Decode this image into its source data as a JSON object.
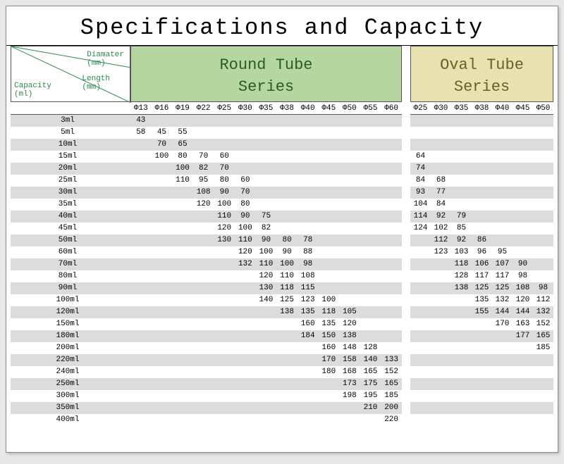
{
  "title": "Specifications and Capacity",
  "header": {
    "diameter": "Diamater\n(mm)",
    "length": "Length\n(mm)",
    "capacity": "Capacity\n(ml)",
    "diameter_line1": "Diamater",
    "diameter_line2": "(mm)",
    "length_line1": "Length",
    "length_line2": "(mm)",
    "capacity_line1": "Capacity",
    "capacity_line2": "(ml)"
  },
  "round": {
    "title_line1": "Round Tube",
    "title_line2": "Series",
    "diameters": [
      "Φ13",
      "Φ16",
      "Φ19",
      "Φ22",
      "Φ25",
      "Φ30",
      "Φ35",
      "Φ38",
      "Φ40",
      "Φ45",
      "Φ50",
      "Φ55",
      "Φ60"
    ],
    "head_bg": "#b5d6a0",
    "head_color": "#2a5a2a"
  },
  "oval": {
    "title_line1": "Oval Tube",
    "title_line2": "Series",
    "diameters": [
      "Φ25",
      "Φ30",
      "Φ35",
      "Φ38",
      "Φ40",
      "Φ45",
      "Φ50"
    ],
    "head_bg": "#e8e2b0",
    "head_color": "#6a6020"
  },
  "capacities": [
    "3ml",
    "5ml",
    "10ml",
    "15ml",
    "20ml",
    "25ml",
    "30ml",
    "35ml",
    "40ml",
    "45ml",
    "50ml",
    "60ml",
    "70ml",
    "80ml",
    "90ml",
    "100ml",
    "120ml",
    "150ml",
    "180ml",
    "200ml",
    "220ml",
    "240ml",
    "250ml",
    "300ml",
    "350ml",
    "400ml"
  ],
  "round_data": [
    [
      "43",
      "",
      "",
      "",
      "",
      "",
      "",
      "",
      "",
      "",
      "",
      "",
      ""
    ],
    [
      "58",
      "45",
      "55",
      "",
      "",
      "",
      "",
      "",
      "",
      "",
      "",
      "",
      ""
    ],
    [
      "",
      "70",
      "65",
      "",
      "",
      "",
      "",
      "",
      "",
      "",
      "",
      "",
      ""
    ],
    [
      "",
      "100",
      "80",
      "70",
      "60",
      "",
      "",
      "",
      "",
      "",
      "",
      "",
      ""
    ],
    [
      "",
      "",
      "100",
      "82",
      "70",
      "",
      "",
      "",
      "",
      "",
      "",
      "",
      ""
    ],
    [
      "",
      "",
      "110",
      "95",
      "80",
      "60",
      "",
      "",
      "",
      "",
      "",
      "",
      ""
    ],
    [
      "",
      "",
      "",
      "108",
      "90",
      "70",
      "",
      "",
      "",
      "",
      "",
      "",
      ""
    ],
    [
      "",
      "",
      "",
      "120",
      "100",
      "80",
      "",
      "",
      "",
      "",
      "",
      "",
      ""
    ],
    [
      "",
      "",
      "",
      "",
      "110",
      "90",
      "75",
      "",
      "",
      "",
      "",
      "",
      ""
    ],
    [
      "",
      "",
      "",
      "",
      "120",
      "100",
      "82",
      "",
      "",
      "",
      "",
      "",
      ""
    ],
    [
      "",
      "",
      "",
      "",
      "130",
      "110",
      "90",
      "80",
      "78",
      "",
      "",
      "",
      ""
    ],
    [
      "",
      "",
      "",
      "",
      "",
      "120",
      "100",
      "90",
      "88",
      "",
      "",
      "",
      ""
    ],
    [
      "",
      "",
      "",
      "",
      "",
      "132",
      "110",
      "100",
      "98",
      "",
      "",
      "",
      ""
    ],
    [
      "",
      "",
      "",
      "",
      "",
      "",
      "120",
      "110",
      "108",
      "",
      "",
      "",
      ""
    ],
    [
      "",
      "",
      "",
      "",
      "",
      "",
      "130",
      "118",
      "115",
      "",
      "",
      "",
      ""
    ],
    [
      "",
      "",
      "",
      "",
      "",
      "",
      "140",
      "125",
      "123",
      "100",
      "",
      "",
      ""
    ],
    [
      "",
      "",
      "",
      "",
      "",
      "",
      "",
      "138",
      "135",
      "118",
      "105",
      "",
      ""
    ],
    [
      "",
      "",
      "",
      "",
      "",
      "",
      "",
      "",
      "160",
      "135",
      "120",
      "",
      ""
    ],
    [
      "",
      "",
      "",
      "",
      "",
      "",
      "",
      "",
      "184",
      "150",
      "138",
      "",
      ""
    ],
    [
      "",
      "",
      "",
      "",
      "",
      "",
      "",
      "",
      "",
      "160",
      "148",
      "128",
      ""
    ],
    [
      "",
      "",
      "",
      "",
      "",
      "",
      "",
      "",
      "",
      "170",
      "158",
      "140",
      "133"
    ],
    [
      "",
      "",
      "",
      "",
      "",
      "",
      "",
      "",
      "",
      "180",
      "168",
      "165",
      "152"
    ],
    [
      "",
      "",
      "",
      "",
      "",
      "",
      "",
      "",
      "",
      "",
      "173",
      "175",
      "165"
    ],
    [
      "",
      "",
      "",
      "",
      "",
      "",
      "",
      "",
      "",
      "",
      "198",
      "195",
      "185"
    ],
    [
      "",
      "",
      "",
      "",
      "",
      "",
      "",
      "",
      "",
      "",
      "",
      "210",
      "200"
    ],
    [
      "",
      "",
      "",
      "",
      "",
      "",
      "",
      "",
      "",
      "",
      "",
      "",
      "220"
    ]
  ],
  "oval_data": [
    [
      "",
      "",
      "",
      "",
      "",
      "",
      ""
    ],
    [
      "",
      "",
      "",
      "",
      "",
      "",
      ""
    ],
    [
      "",
      "",
      "",
      "",
      "",
      "",
      ""
    ],
    [
      "64",
      "",
      "",
      "",
      "",
      "",
      ""
    ],
    [
      "74",
      "",
      "",
      "",
      "",
      "",
      ""
    ],
    [
      "84",
      "68",
      "",
      "",
      "",
      "",
      ""
    ],
    [
      "93",
      "77",
      "",
      "",
      "",
      "",
      ""
    ],
    [
      "104",
      "84",
      "",
      "",
      "",
      "",
      ""
    ],
    [
      "114",
      "92",
      "79",
      "",
      "",
      "",
      ""
    ],
    [
      "124",
      "102",
      "85",
      "",
      "",
      "",
      ""
    ],
    [
      "",
      "112",
      "92",
      "86",
      "",
      "",
      ""
    ],
    [
      "",
      "123",
      "103",
      "96",
      "95",
      "",
      ""
    ],
    [
      "",
      "",
      "118",
      "106",
      "107",
      "90",
      ""
    ],
    [
      "",
      "",
      "128",
      "117",
      "117",
      "98",
      ""
    ],
    [
      "",
      "",
      "138",
      "125",
      "125",
      "108",
      "98"
    ],
    [
      "",
      "",
      "",
      "135",
      "132",
      "120",
      "112"
    ],
    [
      "",
      "",
      "",
      "155",
      "144",
      "144",
      "132"
    ],
    [
      "",
      "",
      "",
      "",
      "170",
      "163",
      "152"
    ],
    [
      "",
      "",
      "",
      "",
      "",
      "177",
      "165"
    ],
    [
      "",
      "",
      "",
      "",
      "",
      "",
      "185"
    ],
    [
      "",
      "",
      "",
      "",
      "",
      "",
      ""
    ],
    [
      "",
      "",
      "",
      "",
      "",
      "",
      ""
    ],
    [
      "",
      "",
      "",
      "",
      "",
      "",
      ""
    ],
    [
      "",
      "",
      "",
      "",
      "",
      "",
      ""
    ],
    [
      "",
      "",
      "",
      "",
      "",
      "",
      ""
    ],
    [
      "",
      "",
      "",
      "",
      "",
      "",
      ""
    ]
  ],
  "style": {
    "row_even_bg": "#dcdcdc",
    "row_odd_bg": "#ffffff",
    "border_color": "#555555",
    "page_bg": "#ffffff",
    "body_bg": "#e8e8e8",
    "title_fontsize": 32,
    "series_fontsize": 22,
    "cell_fontsize": 11,
    "header_text_color": "#2a8a4a"
  }
}
